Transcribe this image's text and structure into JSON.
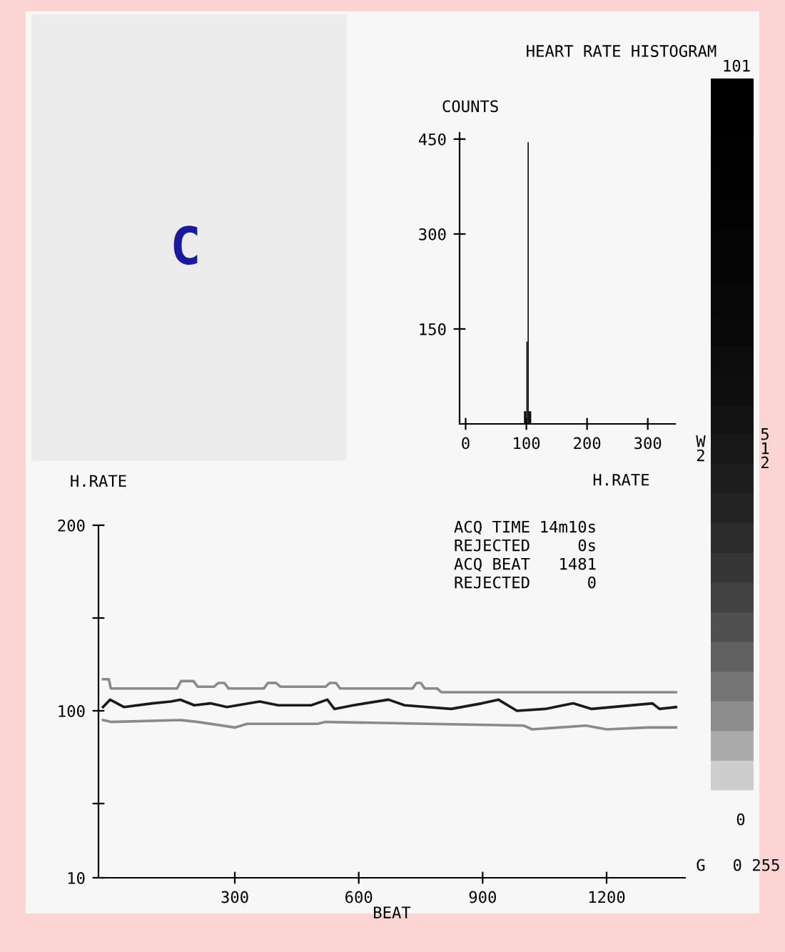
{
  "chart_data": [
    {
      "type": "histogram",
      "title": "HEART RATE HISTOGRAM",
      "ylabel": "COUNTS",
      "xlabel": "H.RATE",
      "bins": [
        96,
        100,
        102,
        104,
        108
      ],
      "values": [
        20,
        130,
        445,
        20
      ],
      "color": "#111111",
      "xlim": [
        -10,
        345
      ],
      "xticks": [
        0,
        100,
        200,
        300
      ],
      "ylim": [
        0,
        460
      ],
      "yticks": [
        150,
        300,
        450
      ],
      "grid": false,
      "annotations": [
        "C",
        "101",
        "W2",
        "512",
        "0",
        "G",
        "0 255"
      ]
    },
    {
      "type": "line",
      "ylabel": "H.RATE",
      "xlabel": "BEAT",
      "series": [
        {
          "color": "#8a8a8a",
          "x": [
            -19,
            0,
            168,
            210,
            300,
            330,
            500,
            520,
            1000,
            1020,
            1150,
            1200,
            1300,
            1368
          ],
          "values": [
            95,
            94,
            95,
            94,
            91,
            93,
            93,
            94,
            92,
            90,
            92,
            90,
            91,
            91
          ]
        },
        {
          "color": "#1a1a1a",
          "x": [
            -19,
            -2,
            32,
            100,
            145,
            168,
            202,
            241,
            281,
            360,
            405,
            485,
            524,
            541,
            587,
            672,
            711,
            824,
            898,
            938,
            983,
            1051,
            1119,
            1164,
            1311,
            1328,
            1368
          ],
          "values": [
            102,
            106,
            102,
            104,
            105,
            106,
            103,
            104,
            102,
            105,
            103,
            103,
            106,
            101,
            103,
            106,
            103,
            101,
            104,
            106,
            100,
            101,
            104,
            101,
            104,
            101,
            102
          ]
        },
        {
          "color": "#8a8a8a",
          "x": [
            -19,
            -5,
            0,
            160,
            170,
            200,
            210,
            250,
            260,
            275,
            285,
            370,
            380,
            400,
            410,
            520,
            530,
            545,
            555,
            730,
            740,
            750,
            760,
            790,
            800,
            1368
          ],
          "values": [
            117,
            117,
            112,
            112,
            116,
            116,
            113,
            113,
            115,
            115,
            112,
            112,
            115,
            115,
            113,
            113,
            115,
            115,
            112,
            112,
            115,
            115,
            112,
            112,
            110,
            110
          ]
        }
      ],
      "xlim": [
        -30,
        1390
      ],
      "xticks": [
        300,
        600,
        900,
        1200
      ],
      "ylim": [
        10,
        200
      ],
      "yticks": [
        10,
        {
          "value": 50,
          "label": null
        },
        100,
        {
          "value": 150,
          "label": null
        },
        200
      ],
      "grid": false,
      "legend": false,
      "marker": "none",
      "line_style": "solid",
      "annotations": [
        "ACQ TIME",
        "14m10s",
        "REJECTED",
        "0s",
        "ACQ BEAT",
        "1481",
        "REJECTED",
        "0"
      ]
    }
  ]
}
